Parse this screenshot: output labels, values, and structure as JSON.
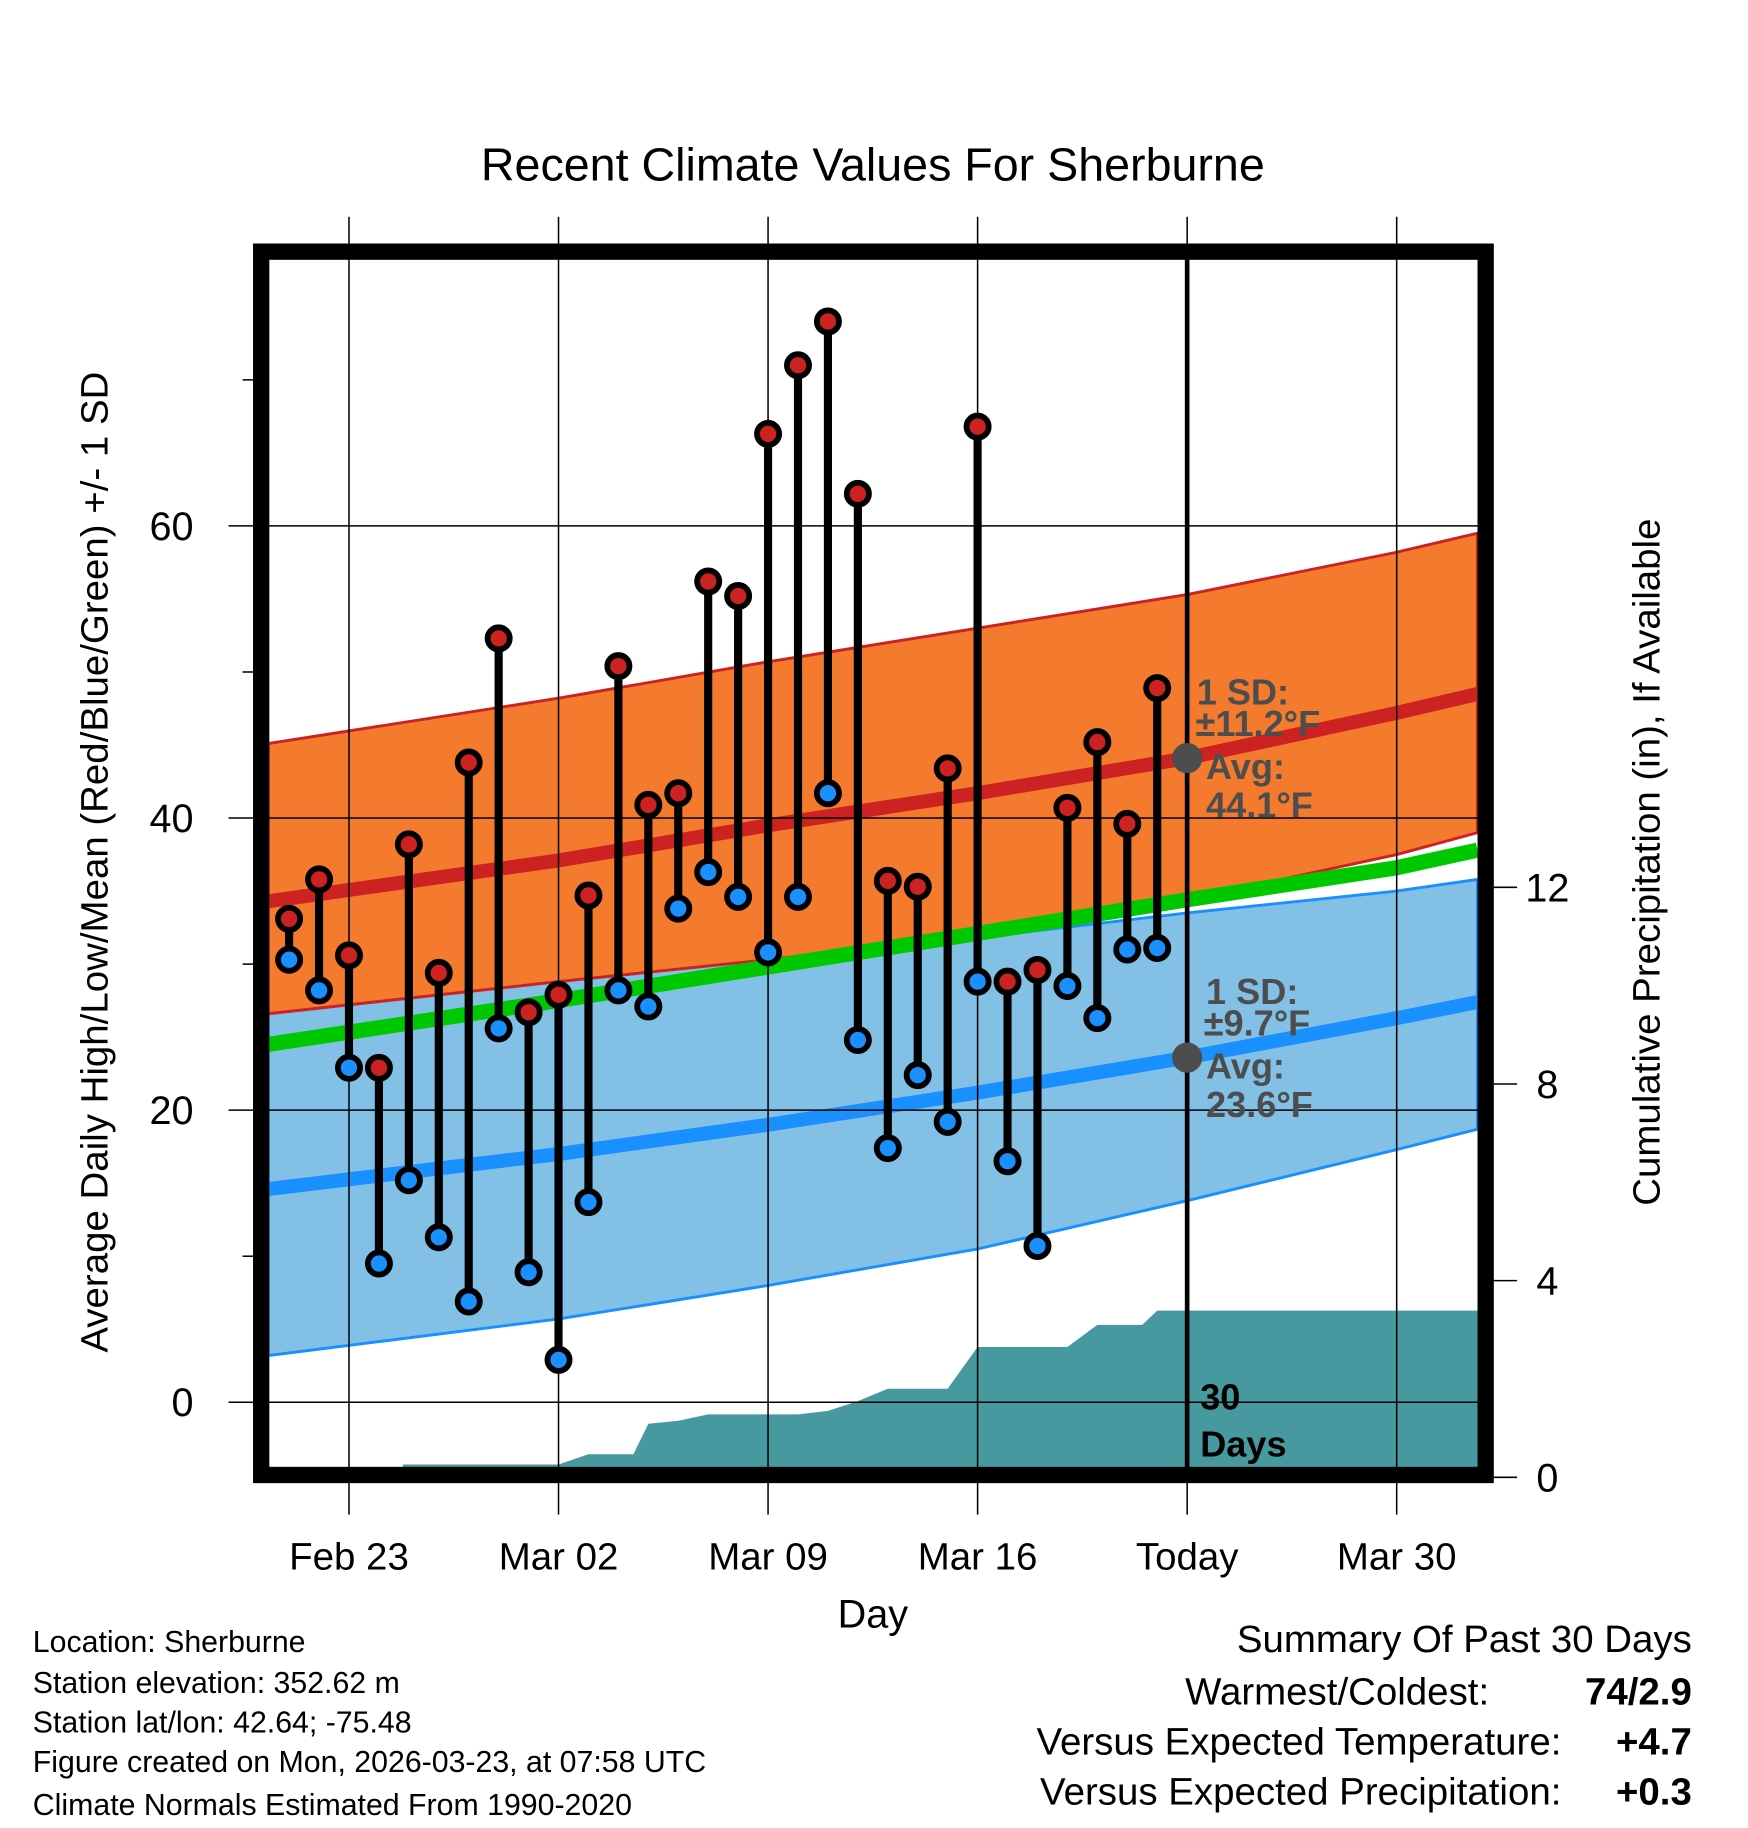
{
  "chart_data": {
    "type": "line",
    "title": "Recent Climate Values For Sherburne",
    "xlabel": "Day",
    "ylabel": "Average Daily High/Low/Mean (Red/Blue/Green) +/- 1 SD",
    "ylabel_right": "Cumulative Precipitation (in), If Available",
    "x_units": "days since Feb 23",
    "xlim": [
      -2.7,
      37.7
    ],
    "ylim": [
      -4.5,
      78.3
    ],
    "ylim_right": [
      0,
      23.3
    ],
    "x_ticks": [
      {
        "day": 0,
        "label": "Feb 23"
      },
      {
        "day": 7,
        "label": "Mar 02"
      },
      {
        "day": 14,
        "label": "Mar 09"
      },
      {
        "day": 21,
        "label": "Mar 16"
      },
      {
        "day": 28,
        "label": "Today"
      },
      {
        "day": 35,
        "label": "Mar 30"
      }
    ],
    "y_ticks": [
      0,
      20,
      40,
      60
    ],
    "y_minor_ticks": [
      10,
      30,
      50,
      70
    ],
    "y_right_ticks": [
      0,
      4,
      8,
      12
    ],
    "grid": true,
    "today_day": 28,
    "colors": {
      "high_band": "#f47b2e",
      "high_line": "#cc2222",
      "low_band": "#82c0e6",
      "low_line": "#1a90ff",
      "mean_line": "#00c800",
      "precip": "#4799a0",
      "high_point": "#cc2222",
      "low_point": "#1a90ff",
      "annotation": "#4d4d4d"
    },
    "observed": {
      "days": [
        -2,
        -1,
        0,
        1,
        2,
        3,
        4,
        5,
        6,
        7,
        8,
        9,
        10,
        11,
        12,
        13,
        14,
        15,
        16,
        17,
        18,
        19,
        20,
        21,
        22,
        23,
        24,
        25,
        26,
        27
      ],
      "highs": [
        33.1,
        35.8,
        30.6,
        22.9,
        38.2,
        29.4,
        43.8,
        52.3,
        26.7,
        27.9,
        34.7,
        50.4,
        40.9,
        41.7,
        56.2,
        55.2,
        66.3,
        71.0,
        74.0,
        62.2,
        35.7,
        35.3,
        43.4,
        66.8,
        28.8,
        29.6,
        40.7,
        45.2,
        39.6,
        48.9
      ],
      "lows": [
        30.3,
        28.2,
        22.9,
        9.5,
        15.2,
        11.3,
        6.9,
        25.6,
        8.9,
        2.9,
        13.7,
        28.2,
        27.1,
        33.8,
        36.3,
        34.6,
        30.8,
        34.6,
        41.7,
        24.8,
        17.4,
        22.4,
        19.2,
        28.8,
        16.5,
        10.7,
        28.5,
        26.3,
        31.0,
        31.1
      ]
    },
    "normals": {
      "days": [
        -2.7,
        7,
        14,
        21,
        28,
        35,
        37.7
      ],
      "high_mean": [
        34.3,
        37.1,
        39.5,
        41.7,
        44.1,
        47.2,
        48.5
      ],
      "high_upper": [
        45.1,
        48.2,
        50.7,
        53.0,
        55.3,
        58.2,
        59.5
      ],
      "high_lower": [
        26.6,
        28.8,
        30.3,
        32.0,
        34.4,
        37.5,
        39.0
      ],
      "low_mean": [
        14.6,
        17.0,
        19.0,
        21.2,
        23.6,
        26.3,
        27.4
      ],
      "low_upper": [
        26.6,
        28.8,
        30.3,
        31.8,
        33.5,
        35.0,
        35.8
      ],
      "low_lower": [
        3.2,
        5.7,
        8.0,
        10.5,
        13.8,
        17.3,
        18.7
      ],
      "mean": [
        24.5,
        27.5,
        29.8,
        32.1,
        34.4,
        36.6,
        37.8
      ]
    },
    "precip_cumulative": {
      "days": [
        -2.7,
        1.8,
        1.8,
        7,
        8,
        9.5,
        10,
        11,
        12,
        15,
        16,
        17,
        18,
        20,
        21,
        24,
        25,
        26.5,
        27,
        37.7
      ],
      "values": [
        0,
        0,
        0.26,
        0.26,
        0.47,
        0.47,
        1.09,
        1.15,
        1.28,
        1.28,
        1.35,
        1.55,
        1.8,
        1.8,
        2.65,
        2.65,
        3.1,
        3.1,
        3.39,
        3.39
      ]
    },
    "annotations": {
      "high": {
        "sd_label": "1 SD:",
        "sd_value": "±11.2°F",
        "avg_label": "Avg:",
        "avg_value": "44.1°F",
        "avg": 44.1
      },
      "low": {
        "sd_label": "1 SD:",
        "sd_value": "±9.7°F",
        "avg_label": "Avg:",
        "avg_value": "23.6°F",
        "avg": 23.6
      },
      "window_line1": "30",
      "window_line2": "Days"
    }
  },
  "footer": {
    "location": "Location: Sherburne",
    "elevation": "Station elevation: 352.62 m",
    "latlon": "Station lat/lon: 42.64; -75.48",
    "created": "Figure created on Mon, 2026-03-23, at 07:58 UTC",
    "normals": "Climate Normals Estimated From 1990-2020"
  },
  "summary": {
    "title": "Summary Of Past 30 Days",
    "warmest_label": "Warmest/Coldest:",
    "warmest_value": "74/2.9",
    "temp_label": "Versus Expected Temperature:",
    "temp_value": "+4.7",
    "temp_color": "#cc2222",
    "precip_label": "Versus Expected Precipitation:",
    "precip_value": "+0.3",
    "precip_color": "#00c000"
  }
}
